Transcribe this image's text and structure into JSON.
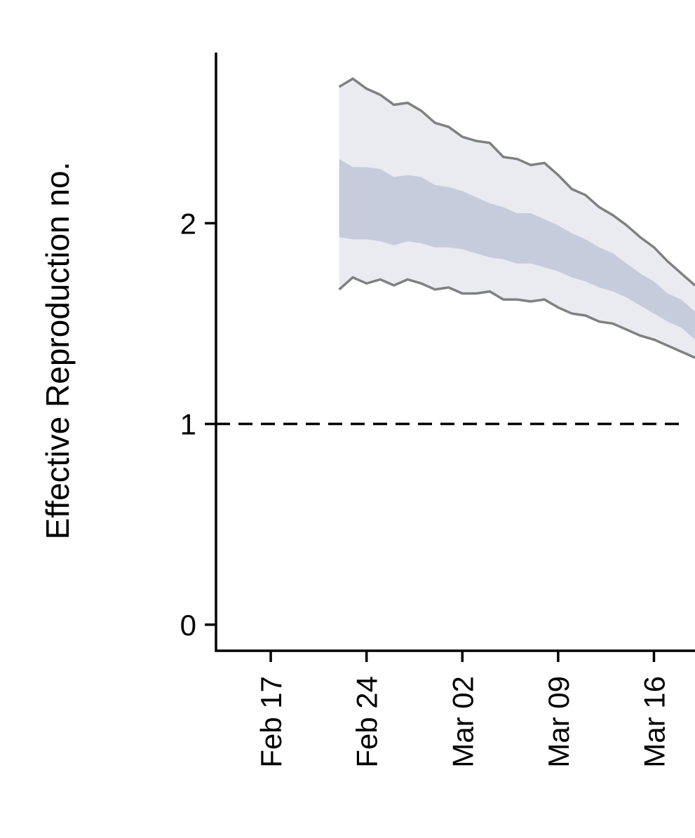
{
  "chart_data": {
    "type": "area",
    "title": "",
    "ylabel": "Effective Reproduction no.",
    "xlabel": "",
    "x_type": "date",
    "x_range": [
      "2020-02-13",
      "2020-03-19"
    ],
    "ylim": [
      -0.13,
      2.85
    ],
    "x_ticks": [
      {
        "date": "2020-02-17",
        "label": "Feb 17"
      },
      {
        "date": "2020-02-24",
        "label": "Feb 24"
      },
      {
        "date": "2020-03-02",
        "label": "Mar 02"
      },
      {
        "date": "2020-03-09",
        "label": "Mar 09"
      },
      {
        "date": "2020-03-16",
        "label": "Mar 16"
      }
    ],
    "y_ticks": [
      {
        "value": 0,
        "label": "0"
      },
      {
        "value": 1,
        "label": "1"
      },
      {
        "value": 2,
        "label": "2"
      }
    ],
    "reference_line": {
      "y": 1,
      "style": "dashed",
      "color": "#000000"
    },
    "dates": [
      "2020-02-22",
      "2020-02-23",
      "2020-02-24",
      "2020-02-25",
      "2020-02-26",
      "2020-02-27",
      "2020-02-28",
      "2020-02-29",
      "2020-03-01",
      "2020-03-02",
      "2020-03-03",
      "2020-03-04",
      "2020-03-05",
      "2020-03-06",
      "2020-03-07",
      "2020-03-08",
      "2020-03-09",
      "2020-03-10",
      "2020-03-11",
      "2020-03-12",
      "2020-03-13",
      "2020-03-14",
      "2020-03-15",
      "2020-03-16",
      "2020-03-17",
      "2020-03-18",
      "2020-03-19"
    ],
    "series": [
      {
        "role": "band_outer_upper",
        "color": "#808080",
        "values": [
          2.68,
          2.72,
          2.67,
          2.64,
          2.59,
          2.6,
          2.56,
          2.5,
          2.48,
          2.43,
          2.41,
          2.4,
          2.33,
          2.32,
          2.29,
          2.3,
          2.24,
          2.17,
          2.14,
          2.08,
          2.04,
          1.99,
          1.93,
          1.88,
          1.81,
          1.75,
          1.69
        ]
      },
      {
        "role": "band_inner_upper",
        "values": [
          2.32,
          2.28,
          2.28,
          2.27,
          2.23,
          2.24,
          2.23,
          2.19,
          2.18,
          2.16,
          2.13,
          2.1,
          2.08,
          2.05,
          2.05,
          2.02,
          1.99,
          1.95,
          1.92,
          1.88,
          1.85,
          1.8,
          1.75,
          1.71,
          1.65,
          1.62,
          1.56
        ]
      },
      {
        "role": "band_inner_lower",
        "values": [
          1.93,
          1.92,
          1.92,
          1.91,
          1.89,
          1.91,
          1.9,
          1.88,
          1.88,
          1.87,
          1.85,
          1.83,
          1.82,
          1.8,
          1.8,
          1.78,
          1.76,
          1.73,
          1.71,
          1.68,
          1.66,
          1.63,
          1.59,
          1.55,
          1.51,
          1.48,
          1.42
        ]
      },
      {
        "role": "band_outer_lower",
        "color": "#808080",
        "values": [
          1.67,
          1.73,
          1.7,
          1.72,
          1.69,
          1.72,
          1.7,
          1.67,
          1.68,
          1.65,
          1.65,
          1.66,
          1.62,
          1.62,
          1.61,
          1.62,
          1.58,
          1.55,
          1.54,
          1.51,
          1.5,
          1.47,
          1.44,
          1.42,
          1.39,
          1.36,
          1.33
        ]
      }
    ],
    "colors": {
      "outer_band": "#eaebf0",
      "inner_band": "#c6ccdb",
      "bound_line": "#808080",
      "axis": "#000000"
    },
    "grid": false,
    "legend": "none"
  }
}
